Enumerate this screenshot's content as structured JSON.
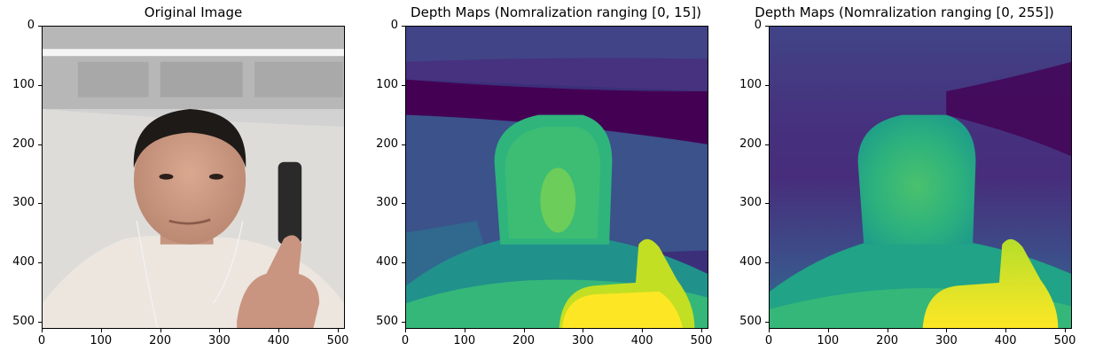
{
  "figure": {
    "panels": [
      {
        "title": "Original Image",
        "type": "photo"
      },
      {
        "title": "Depth Maps (Nomralization ranging [0, 15])",
        "type": "depth-quantized"
      },
      {
        "title": "Depth Maps (Nomralization ranging [0, 255])",
        "type": "depth-smooth"
      }
    ],
    "yticks": [
      "0",
      "100",
      "200",
      "300",
      "400",
      "500"
    ],
    "xticks": [
      "0",
      "100",
      "200",
      "300",
      "400",
      "500"
    ],
    "image_extent": [
      0,
      512
    ],
    "colormap": "viridis",
    "colors": {
      "viridis_dark": "#440154",
      "viridis_purple": "#46327e",
      "viridis_blue": "#365c8d",
      "viridis_teal": "#277f8e",
      "viridis_green": "#1fa187",
      "viridis_lightgreen": "#4ac16d",
      "viridis_yellowgreen": "#a0da39",
      "viridis_yellow": "#fde725"
    }
  }
}
